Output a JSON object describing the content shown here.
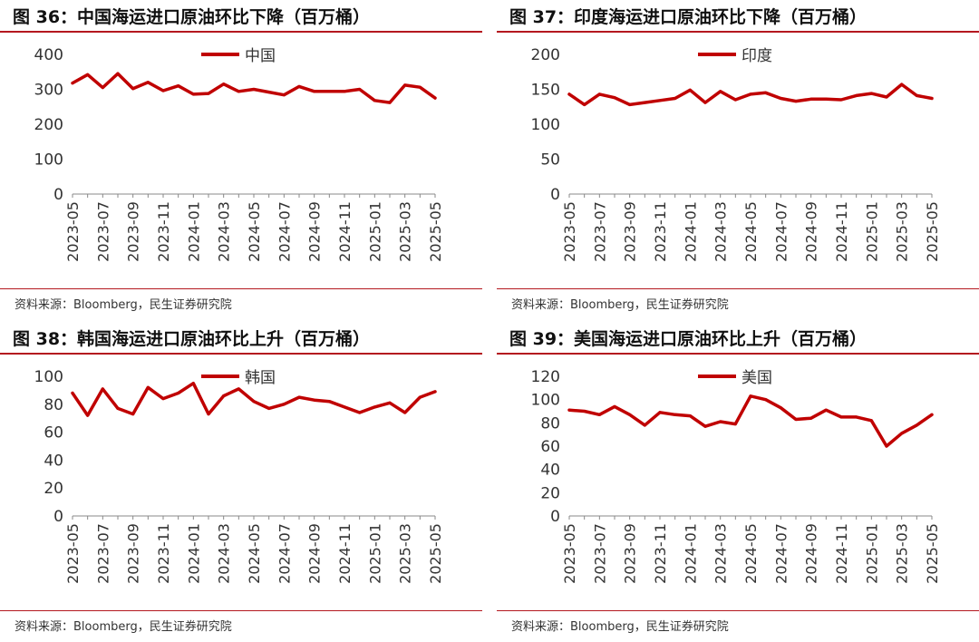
{
  "colors": {
    "line": "#c00000",
    "rule": "#b4181f",
    "axis": "#888888",
    "text": "#333333"
  },
  "chart_data": [
    {
      "type": "line",
      "title": "图 36：中国海运进口原油环比下降（百万桶）",
      "source": "资料来源：Bloomberg，民生证券研究院",
      "legend_position": "top-center",
      "x": [
        "2023-05",
        "2023-06",
        "2023-07",
        "2023-08",
        "2023-09",
        "2023-10",
        "2023-11",
        "2023-12",
        "2024-01",
        "2024-02",
        "2024-03",
        "2024-04",
        "2024-05",
        "2024-06",
        "2024-07",
        "2024-08",
        "2024-09",
        "2024-10",
        "2024-11",
        "2024-12",
        "2025-01",
        "2025-02",
        "2025-03",
        "2025-04",
        "2025-05"
      ],
      "x_tick_labels": [
        "2023-05",
        "2023-07",
        "2023-09",
        "2023-11",
        "2024-01",
        "2024-03",
        "2024-05",
        "2024-07",
        "2024-09",
        "2024-11",
        "2025-01",
        "2025-03",
        "2025-05"
      ],
      "series": [
        {
          "name": "中国",
          "values": [
            318,
            342,
            305,
            345,
            302,
            320,
            296,
            310,
            286,
            288,
            315,
            294,
            300,
            292,
            284,
            308,
            294,
            294,
            294,
            300,
            268,
            262,
            312,
            306,
            275
          ]
        }
      ],
      "ylim": [
        0,
        400
      ],
      "yticks": [
        0,
        100,
        200,
        300,
        400
      ],
      "grid": false
    },
    {
      "type": "line",
      "title": "图 37：印度海运进口原油环比下降（百万桶）",
      "source": "资料来源：Bloomberg，民生证券研究院",
      "legend_position": "top-center",
      "x": [
        "2023-05",
        "2023-06",
        "2023-07",
        "2023-08",
        "2023-09",
        "2023-10",
        "2023-11",
        "2023-12",
        "2024-01",
        "2024-02",
        "2024-03",
        "2024-04",
        "2024-05",
        "2024-06",
        "2024-07",
        "2024-08",
        "2024-09",
        "2024-10",
        "2024-11",
        "2024-12",
        "2025-01",
        "2025-02",
        "2025-03",
        "2025-04",
        "2025-05"
      ],
      "x_tick_labels": [
        "2023-05",
        "2023-07",
        "2023-09",
        "2023-11",
        "2024-01",
        "2024-03",
        "2024-05",
        "2024-07",
        "2024-09",
        "2024-11",
        "2025-01",
        "2025-03",
        "2025-05"
      ],
      "series": [
        {
          "name": "印度",
          "values": [
            143,
            128,
            143,
            138,
            128,
            131,
            134,
            137,
            149,
            131,
            147,
            135,
            143,
            145,
            137,
            133,
            136,
            136,
            135,
            141,
            144,
            139,
            157,
            141,
            137
          ]
        }
      ],
      "ylim": [
        0,
        200
      ],
      "yticks": [
        0,
        50,
        100,
        150,
        200
      ],
      "grid": false
    },
    {
      "type": "line",
      "title": "图 38：韩国海运进口原油环比上升（百万桶）",
      "source": "资料来源：Bloomberg，民生证券研究院",
      "legend_position": "top-center",
      "x": [
        "2023-05",
        "2023-06",
        "2023-07",
        "2023-08",
        "2023-09",
        "2023-10",
        "2023-11",
        "2023-12",
        "2024-01",
        "2024-02",
        "2024-03",
        "2024-04",
        "2024-05",
        "2024-06",
        "2024-07",
        "2024-08",
        "2024-09",
        "2024-10",
        "2024-11",
        "2024-12",
        "2025-01",
        "2025-02",
        "2025-03",
        "2025-04",
        "2025-05"
      ],
      "x_tick_labels": [
        "2023-05",
        "2023-07",
        "2023-09",
        "2023-11",
        "2024-01",
        "2024-03",
        "2024-05",
        "2024-07",
        "2024-09",
        "2024-11",
        "2025-01",
        "2025-03",
        "2025-05"
      ],
      "series": [
        {
          "name": "韩国",
          "values": [
            88,
            72,
            91,
            77,
            73,
            92,
            84,
            88,
            95,
            73,
            86,
            91,
            82,
            77,
            80,
            85,
            83,
            82,
            78,
            74,
            78,
            81,
            74,
            85,
            89
          ]
        }
      ],
      "ylim": [
        0,
        100
      ],
      "yticks": [
        0,
        20,
        40,
        60,
        80,
        100
      ],
      "grid": false
    },
    {
      "type": "line",
      "title": "图 39：美国海运进口原油环比上升（百万桶）",
      "source": "资料来源：Bloomberg，民生证券研究院",
      "legend_position": "top-center",
      "x": [
        "2023-05",
        "2023-06",
        "2023-07",
        "2023-08",
        "2023-09",
        "2023-10",
        "2023-11",
        "2023-12",
        "2024-01",
        "2024-02",
        "2024-03",
        "2024-04",
        "2024-05",
        "2024-06",
        "2024-07",
        "2024-08",
        "2024-09",
        "2024-10",
        "2024-11",
        "2024-12",
        "2025-01",
        "2025-02",
        "2025-03",
        "2025-04",
        "2025-05"
      ],
      "x_tick_labels": [
        "2023-05",
        "2023-07",
        "2023-09",
        "2023-11",
        "2024-01",
        "2024-03",
        "2024-05",
        "2024-07",
        "2024-09",
        "2024-11",
        "2025-01",
        "2025-03",
        "2025-05"
      ],
      "series": [
        {
          "name": "美国",
          "values": [
            91,
            90,
            87,
            94,
            87,
            78,
            89,
            87,
            86,
            77,
            81,
            79,
            103,
            100,
            93,
            83,
            84,
            91,
            85,
            85,
            82,
            60,
            71,
            78,
            87
          ]
        }
      ],
      "ylim": [
        0,
        120
      ],
      "yticks": [
        0,
        20,
        40,
        60,
        80,
        100,
        120
      ],
      "grid": false
    }
  ]
}
